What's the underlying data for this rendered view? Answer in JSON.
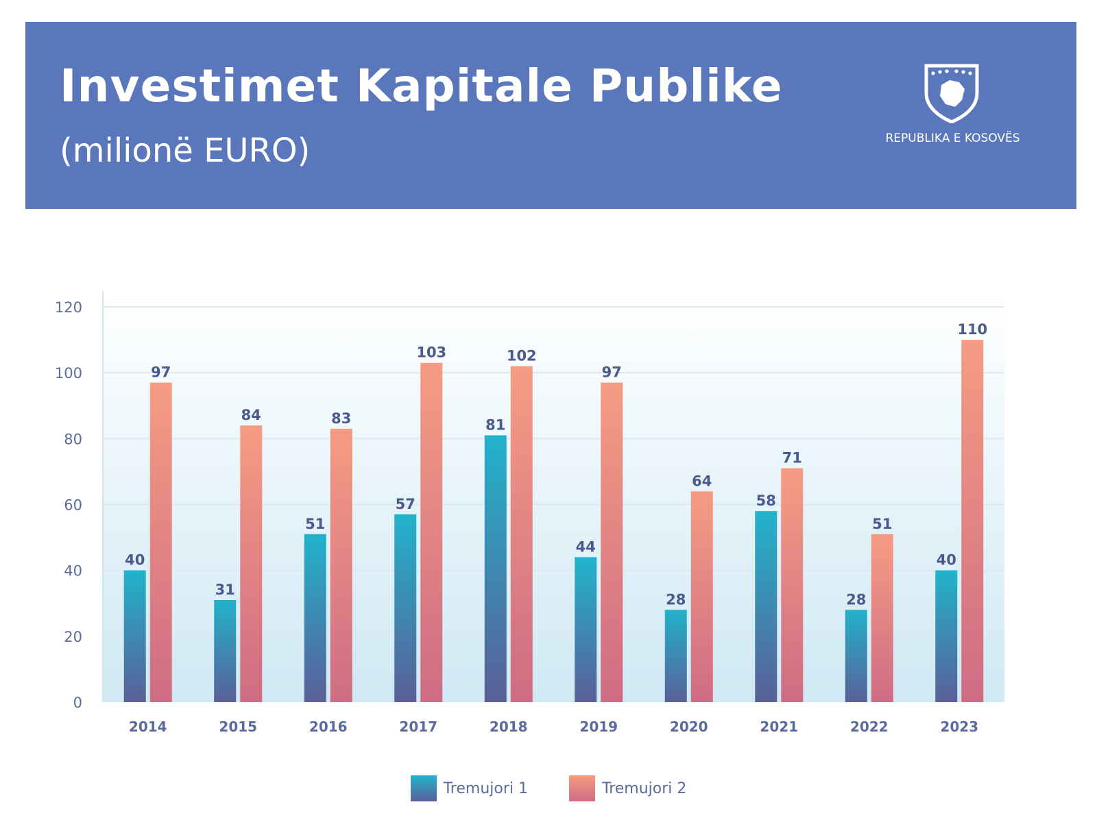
{
  "header": {
    "title": "Investimet Kapitale Publike",
    "subtitle": "(milionë EURO)",
    "emblem_icon": "kosovo-emblem-icon",
    "logo_text": "REPUBLIKA E KOSOVËS"
  },
  "colors": {
    "header_bg": "#5a77bb",
    "series1_top": "#22b3cb",
    "series1_bottom": "#5a5f98",
    "series2_top": "#f59c83",
    "series2_bottom": "#cf6c84",
    "axis_text": "#5a6b9b"
  },
  "chart_data": {
    "type": "bar",
    "categories": [
      "2014",
      "2015",
      "2016",
      "2017",
      "2018",
      "2019",
      "2020",
      "2021",
      "2022",
      "2023"
    ],
    "series": [
      {
        "name": "Tremujori 1",
        "values": [
          40,
          31,
          51,
          57,
          81,
          44,
          28,
          58,
          28,
          40
        ]
      },
      {
        "name": "Tremujori 2",
        "values": [
          97,
          84,
          83,
          103,
          102,
          97,
          64,
          71,
          51,
          110
        ]
      }
    ],
    "ylim": [
      0,
      120
    ],
    "yticks": [
      0,
      20,
      40,
      60,
      80,
      100,
      120
    ],
    "grid": true,
    "legend_position": "bottom-center"
  }
}
